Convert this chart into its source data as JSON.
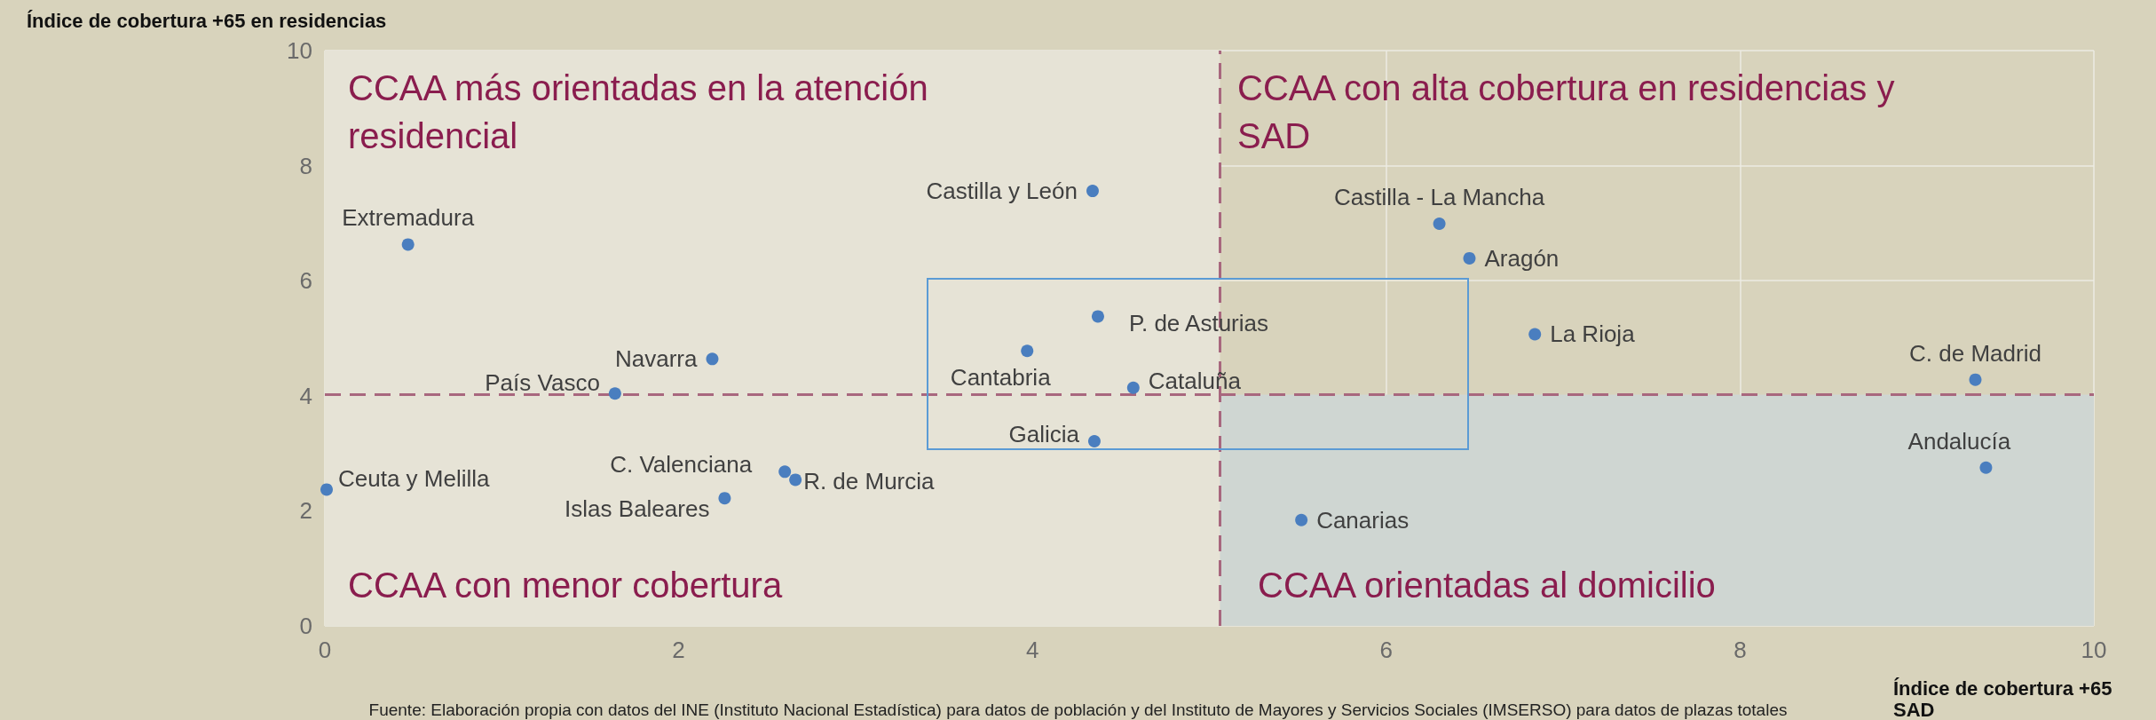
{
  "chart_data": {
    "type": "scatter",
    "ylabel": "Índice de cobertura +65 en residencias",
    "xlabel": "Índice de cobertura +65 SAD",
    "xlim": [
      0,
      10
    ],
    "xticks": [
      0,
      2,
      4,
      6,
      8,
      10
    ],
    "ylim": [
      0,
      10
    ],
    "yticks": [
      0,
      2,
      4,
      6,
      8,
      10
    ],
    "grid": true,
    "marker": "circle",
    "series": [
      {
        "name": "Extremadura",
        "color": "#4a7ebf",
        "x": [
          0.47
        ],
        "values": [
          6.63
        ]
      },
      {
        "name": "Castilla y León",
        "color": "#4a7ebf",
        "x": [
          4.34
        ],
        "values": [
          7.56
        ]
      },
      {
        "name": "Castilla - La Mancha",
        "color": "#4a7ebf",
        "x": [
          6.3
        ],
        "values": [
          6.99
        ]
      },
      {
        "name": "Aragón",
        "color": "#4a7ebf",
        "x": [
          6.47
        ],
        "values": [
          6.39
        ]
      },
      {
        "name": "La Rioja",
        "color": "#4a7ebf",
        "x": [
          6.84
        ],
        "values": [
          5.07
        ]
      },
      {
        "name": "C. de Madrid",
        "color": "#4a7ebf",
        "x": [
          9.33
        ],
        "values": [
          4.28
        ]
      },
      {
        "name": "Andalucía",
        "color": "#4a7ebf",
        "x": [
          9.39
        ],
        "values": [
          2.75
        ]
      },
      {
        "name": "Canarias",
        "color": "#4a7ebf",
        "x": [
          5.52
        ],
        "values": [
          1.84
        ]
      },
      {
        "name": "P. de Asturias",
        "color": "#4a7ebf",
        "x": [
          4.37
        ],
        "values": [
          5.38
        ]
      },
      {
        "name": "Cantabria",
        "color": "#4a7ebf",
        "x": [
          3.97
        ],
        "values": [
          4.78
        ]
      },
      {
        "name": "Cataluña",
        "color": "#4a7ebf",
        "x": [
          4.57
        ],
        "values": [
          4.14
        ]
      },
      {
        "name": "Galicia",
        "color": "#4a7ebf",
        "x": [
          4.35
        ],
        "values": [
          3.21
        ]
      },
      {
        "name": "Navarra",
        "color": "#4a7ebf",
        "x": [
          2.19
        ],
        "values": [
          4.64
        ]
      },
      {
        "name": "País Vasco",
        "color": "#4a7ebf",
        "x": [
          1.64
        ],
        "values": [
          4.04
        ]
      },
      {
        "name": "Ceuta y Melilla",
        "color": "#4a7ebf",
        "x": [
          0.01
        ],
        "values": [
          2.37
        ]
      },
      {
        "name": "C. Valenciana",
        "color": "#4a7ebf",
        "x": [
          2.6
        ],
        "values": [
          2.68
        ]
      },
      {
        "name": "R. de Murcia",
        "color": "#4a7ebf",
        "x": [
          2.66
        ],
        "values": [
          2.54
        ]
      },
      {
        "name": "Islas Baleares",
        "color": "#4a7ebf",
        "x": [
          2.26
        ],
        "values": [
          2.22
        ]
      }
    ],
    "bands": [
      {
        "axis": "x",
        "from": 0,
        "to": 5.06,
        "color": "#e6e3d6"
      },
      {
        "axis": "y",
        "from": 0,
        "to": 4.02,
        "color": "#cfd6d2"
      }
    ],
    "ref_lines": [
      {
        "axis": "x",
        "value": 5.06,
        "color": "#a8677e",
        "line_style": "dashed"
      },
      {
        "axis": "y",
        "value": 4.02,
        "color": "#a8677e",
        "line_style": "dashed"
      }
    ],
    "annotations": [
      "CCAA más orientadas en la atención residencial",
      "CCAA con alta cobertura en residencias y SAD",
      "CCAA con menor cobertura",
      "CCAA orientadas al domicilio",
      "Fuente: Elaboración propia con datos del INE (Instituto Nacional Estadística) para datos de población y del Instituto de Mayores y Servicios Sociales (IMSERSO) para datos de plazas totales"
    ]
  }
}
